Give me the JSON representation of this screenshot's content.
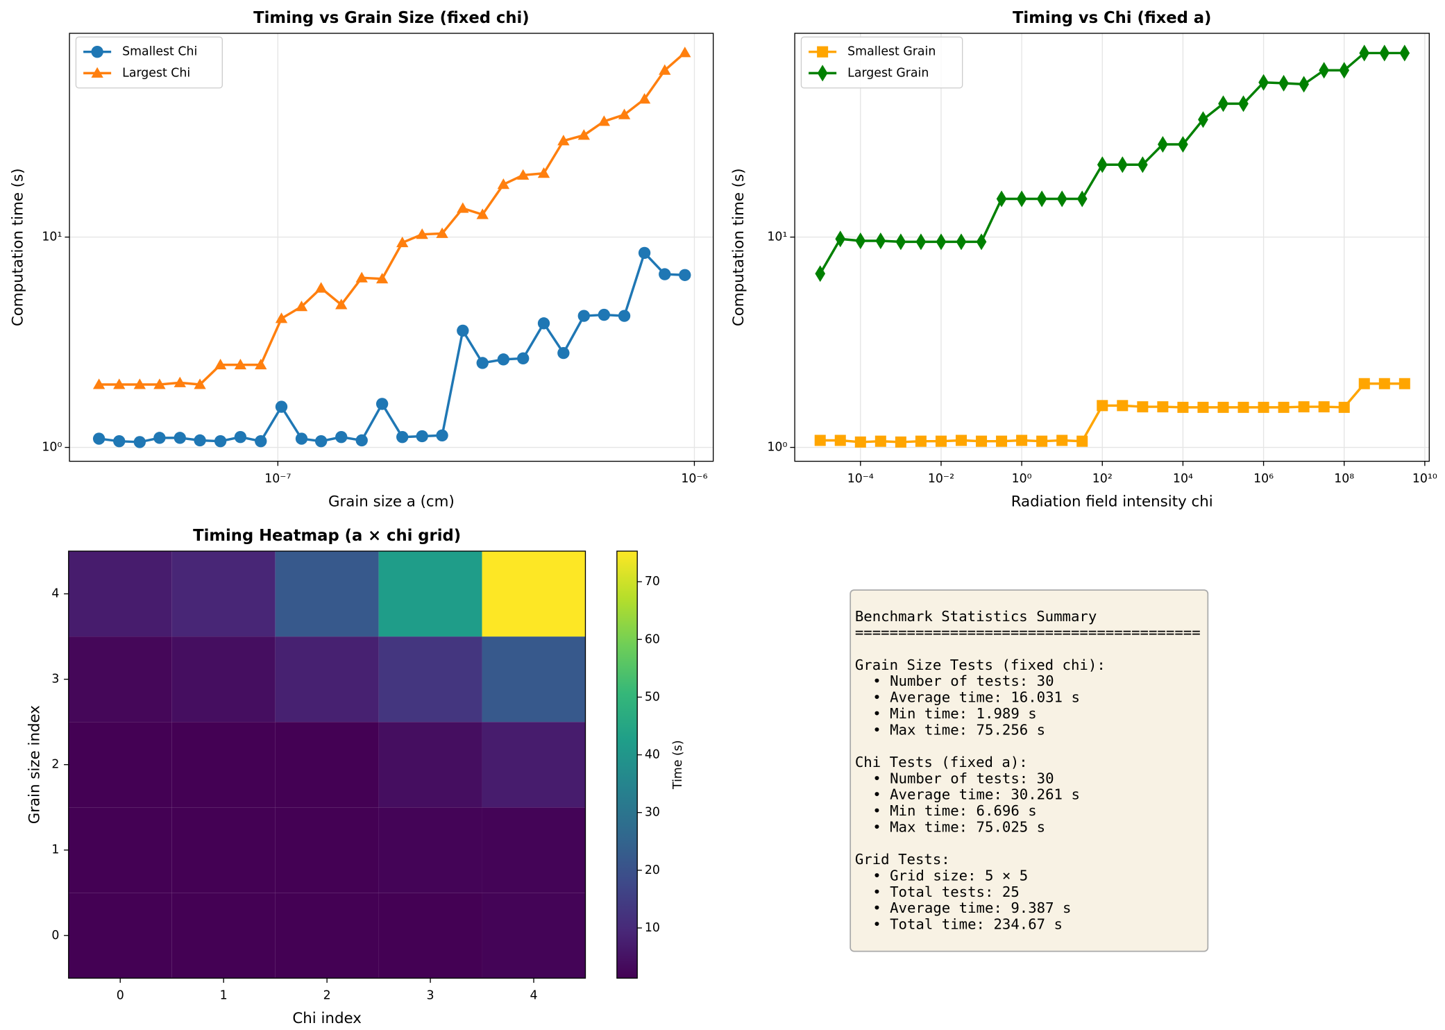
{
  "chart_data": [
    {
      "type": "line",
      "title": "Timing vs Grain Size (fixed chi)",
      "xlabel": "Grain size a (cm)",
      "ylabel": "Computation time (s)",
      "xscale": "log",
      "yscale": "log",
      "grid": true,
      "legend": "upper left",
      "x": [
        3.72e-08,
        4.16e-08,
        4.66e-08,
        5.2e-08,
        5.82e-08,
        6.5e-08,
        7.28e-08,
        8.13e-08,
        9.1e-08,
        1.02e-07,
        1.14e-07,
        1.27e-07,
        1.42e-07,
        1.59e-07,
        1.78e-07,
        1.99e-07,
        2.22e-07,
        2.48e-07,
        2.78e-07,
        3.1e-07,
        3.48e-07,
        3.88e-07,
        4.35e-07,
        4.85e-07,
        5.43e-07,
        6.07e-07,
        6.79e-07,
        7.59e-07,
        8.49e-07,
        9.49e-07
      ],
      "series": [
        {
          "name": "Smallest Chi",
          "color": "#1f77b4",
          "marker": "circle",
          "values": [
            1.1,
            1.07,
            1.06,
            1.11,
            1.11,
            1.08,
            1.07,
            1.12,
            1.07,
            1.56,
            1.1,
            1.07,
            1.12,
            1.08,
            1.61,
            1.12,
            1.13,
            1.14,
            3.59,
            2.52,
            2.62,
            2.65,
            3.89,
            2.81,
            4.22,
            4.27,
            4.22,
            8.41,
            6.66,
            6.6
          ]
        },
        {
          "name": "Largest Chi",
          "color": "#ff7f0e",
          "marker": "triangle",
          "values": [
            1.99,
            1.99,
            1.99,
            1.99,
            2.03,
            1.99,
            2.47,
            2.47,
            2.47,
            4.1,
            4.67,
            5.72,
            4.77,
            6.4,
            6.33,
            9.41,
            10.3,
            10.4,
            13.7,
            12.8,
            17.8,
            19.7,
            20.1,
            28.7,
            30.5,
            35.5,
            38.2,
            45.3,
            62.1,
            75.3
          ]
        }
      ],
      "xlim": [
        3.16e-08,
        1.11e-06
      ],
      "ylim": [
        0.859,
        93.1
      ],
      "xticks": [
        {
          "value": 1e-07,
          "label": "10⁻⁷"
        },
        {
          "value": 1e-06,
          "label": "10⁻⁶"
        }
      ],
      "yticks": [
        {
          "value": 1,
          "label": "10⁰"
        },
        {
          "value": 10,
          "label": "10¹"
        }
      ]
    },
    {
      "type": "line",
      "title": "Timing vs Chi (fixed a)",
      "xlabel": "Radiation field intensity chi",
      "ylabel": "Computation time (s)",
      "xscale": "log",
      "yscale": "log",
      "grid": true,
      "legend": "upper left",
      "x": [
        1e-05,
        3.16e-05,
        0.0001,
        0.000316,
        0.001,
        0.00316,
        0.01,
        0.0316,
        0.1,
        0.316,
        1,
        3.16,
        10,
        31.6,
        100,
        316,
        1000,
        3160,
        10000.0,
        31600.0,
        100000.0,
        316000.0,
        1000000.0,
        3160000.0,
        10000000.0,
        31600000.0,
        100000000.0,
        316000000.0,
        1000000000.0,
        3160000000.0
      ],
      "series": [
        {
          "name": "Smallest Grain",
          "color": "#ffa500",
          "marker": "square",
          "values": [
            1.08,
            1.08,
            1.06,
            1.07,
            1.06,
            1.07,
            1.07,
            1.08,
            1.07,
            1.07,
            1.08,
            1.07,
            1.08,
            1.07,
            1.58,
            1.58,
            1.56,
            1.56,
            1.55,
            1.55,
            1.55,
            1.55,
            1.55,
            1.55,
            1.56,
            1.56,
            1.55,
            2.01,
            2.01,
            2.01
          ]
        },
        {
          "name": "Largest Grain",
          "color": "#008000",
          "marker": "diamond",
          "values": [
            6.7,
            9.8,
            9.6,
            9.6,
            9.5,
            9.5,
            9.5,
            9.5,
            9.5,
            15.2,
            15.2,
            15.2,
            15.2,
            15.2,
            22.1,
            22.1,
            22.1,
            27.6,
            27.6,
            36.2,
            43.1,
            43.1,
            54.4,
            53.9,
            53.3,
            62.1,
            62.1,
            75.0,
            75.0,
            75.0
          ]
        }
      ],
      "xlim": [
        2.34e-06,
        12900000000.0
      ],
      "ylim": [
        0.859,
        93.1
      ],
      "xticks": [
        {
          "value": 0.0001,
          "label": "10⁻⁴"
        },
        {
          "value": 0.01,
          "label": "10⁻²"
        },
        {
          "value": 1,
          "label": "10⁰"
        },
        {
          "value": 100,
          "label": "10²"
        },
        {
          "value": 10000.0,
          "label": "10⁴"
        },
        {
          "value": 1000000.0,
          "label": "10⁶"
        },
        {
          "value": 100000000.0,
          "label": "10⁸"
        },
        {
          "value": 10000000000.0,
          "label": "10¹⁰"
        }
      ],
      "yticks": [
        {
          "value": 1,
          "label": "10⁰"
        },
        {
          "value": 10,
          "label": "10¹"
        }
      ]
    },
    {
      "type": "heatmap",
      "title": "Timing Heatmap (a × chi grid)",
      "xlabel": "Chi index",
      "ylabel": "Grain size index",
      "colormap": "viridis",
      "z": [
        [
          1.3,
          1.3,
          1.3,
          1.3,
          2
        ],
        [
          1.3,
          1.3,
          1.3,
          2,
          2
        ],
        [
          1.3,
          1.3,
          1.3,
          4,
          7
        ],
        [
          2.5,
          4,
          8,
          13,
          22
        ],
        [
          7,
          9,
          22,
          42,
          75.3
        ]
      ],
      "xlim": [
        -0.5,
        4.5
      ],
      "ylim": [
        -0.5,
        4.5
      ],
      "xticks": [
        0,
        1,
        2,
        3,
        4
      ],
      "yticks": [
        0,
        1,
        2,
        3,
        4
      ],
      "clim": [
        1.3,
        75.3
      ],
      "colorbar_label": "Time (s)",
      "colorbar_ticks": [
        10,
        20,
        30,
        40,
        50,
        60,
        70
      ]
    }
  ],
  "summary": {
    "title": "Benchmark Statistics Summary",
    "rule": "========================================",
    "sections": [
      {
        "heading": "Grain Size Tests (fixed chi):",
        "items": [
          "• Number of tests: 30",
          "• Average time: 16.031 s",
          "• Min time: 1.989 s",
          "• Max time: 75.256 s"
        ]
      },
      {
        "heading": "Chi Tests (fixed a):",
        "items": [
          "• Number of tests: 30",
          "• Average time: 30.261 s",
          "• Min time: 6.696 s",
          "• Max time: 75.025 s"
        ]
      },
      {
        "heading": "Grid Tests:",
        "items": [
          "• Grid size: 5 × 5",
          "• Total tests: 25",
          "• Average time: 9.387 s",
          "• Total time: 234.67 s"
        ]
      }
    ]
  }
}
